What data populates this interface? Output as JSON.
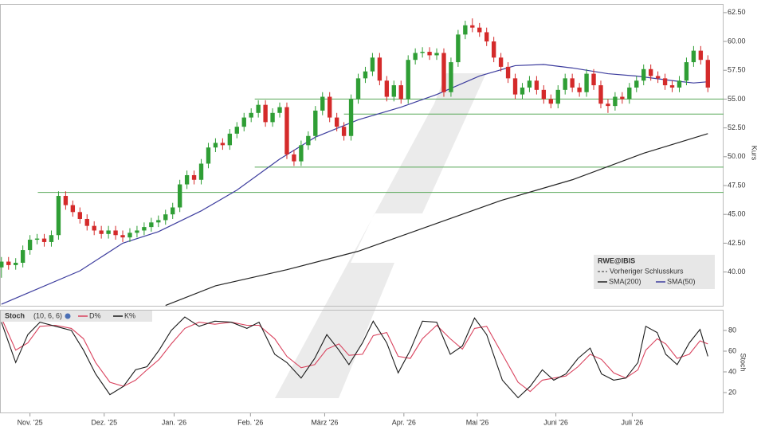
{
  "chart_data": [
    {
      "type": "candlestick",
      "ylabel": "Kurs",
      "xlim": [
        -0.2,
        101.2
      ],
      "ylim": [
        37.0,
        63.25
      ],
      "yticks": [
        {
          "value": 40,
          "label": "40.00"
        },
        {
          "value": 42.5,
          "label": "42.50"
        },
        {
          "value": 45,
          "label": "45.00"
        },
        {
          "value": 47.5,
          "label": "47.50"
        },
        {
          "value": 50,
          "label": "50.00"
        },
        {
          "value": 52.5,
          "label": "52.50"
        },
        {
          "value": 55,
          "label": "55.00"
        },
        {
          "value": 57.5,
          "label": "57.50"
        },
        {
          "value": 60,
          "label": "60.00"
        },
        {
          "value": 62.5,
          "label": "62.50"
        }
      ],
      "legend_title": "RWE@IBIS",
      "legend_note": "Vorheriger Schlusskurs",
      "legend": "lower right",
      "up_color": "#2f9e35",
      "down_color": "#d42a2a",
      "level_color": "#58a858",
      "x": [
        0,
        1,
        2,
        3,
        4,
        5,
        6,
        7,
        8,
        9,
        10,
        11,
        12,
        13,
        14,
        15,
        16,
        17,
        18,
        19,
        20,
        21,
        22,
        23,
        24,
        25,
        26,
        27,
        28,
        29,
        30,
        31,
        32,
        33,
        34,
        35,
        36,
        37,
        38,
        39,
        40,
        41,
        42,
        43,
        44,
        45,
        46,
        47,
        48,
        49,
        50,
        51,
        52,
        53,
        54,
        55,
        56,
        57,
        58,
        59,
        60,
        61,
        62,
        63,
        64,
        65,
        66,
        67,
        68,
        69,
        70,
        71,
        72,
        73,
        74,
        75,
        76,
        77,
        78,
        79,
        80,
        81,
        82,
        83,
        84,
        85,
        86,
        87,
        88,
        89,
        90,
        91,
        92,
        93,
        94,
        95,
        96,
        97,
        98,
        99
      ],
      "open": [
        40.4,
        40.9,
        40.6,
        40.8,
        41.9,
        42.8,
        42.9,
        42.6,
        43.2,
        46.6,
        45.8,
        45.2,
        44.6,
        44.0,
        43.6,
        43.3,
        43.6,
        43.2,
        43.0,
        43.4,
        43.6,
        43.9,
        44.3,
        44.5,
        45.0,
        45.6,
        47.6,
        48.4,
        48.0,
        49.4,
        50.8,
        51.2,
        51.0,
        52.0,
        52.6,
        53.4,
        53.8,
        54.5,
        53.0,
        53.8,
        54.3,
        50.2,
        49.6,
        51.0,
        51.8,
        54.0,
        55.2,
        53.4,
        52.6,
        51.8,
        55.0,
        56.8,
        57.4,
        58.6,
        56.6,
        55.2,
        56.2,
        55.0,
        58.4,
        59.0,
        59.1,
        58.8,
        59.0,
        55.6,
        58.2,
        60.6,
        61.4,
        61.2,
        60.8,
        60.0,
        58.6,
        57.8,
        56.8,
        55.4,
        56.0,
        56.6,
        55.8,
        55.0,
        54.6,
        55.8,
        56.8,
        56.0,
        55.6,
        57.2,
        56.2,
        54.6,
        54.4,
        55.2,
        55.0,
        56.0,
        56.6,
        57.6,
        57.0,
        56.8,
        56.2,
        56.0,
        56.6,
        58.2,
        59.2,
        58.4
      ],
      "high": [
        41.3,
        41.3,
        41.2,
        42.3,
        43.2,
        43.3,
        43.3,
        43.6,
        47.0,
        47.0,
        46.2,
        45.6,
        45.0,
        44.4,
        44.0,
        44.0,
        44.0,
        43.6,
        43.8,
        44.0,
        44.3,
        44.7,
        44.9,
        45.4,
        46.0,
        48.0,
        48.8,
        48.8,
        49.8,
        51.2,
        51.6,
        51.6,
        52.4,
        53.0,
        53.8,
        54.2,
        54.9,
        54.9,
        54.2,
        54.7,
        54.7,
        50.6,
        51.4,
        52.2,
        54.4,
        55.6,
        55.6,
        53.8,
        53.0,
        55.4,
        57.2,
        57.8,
        59.0,
        59.0,
        57.0,
        56.6,
        56.6,
        58.8,
        59.4,
        59.5,
        59.5,
        59.4,
        59.4,
        58.6,
        61.0,
        61.8,
        62.0,
        61.6,
        61.2,
        60.4,
        59.0,
        58.2,
        57.2,
        56.4,
        57.0,
        57.0,
        56.2,
        55.4,
        56.2,
        57.2,
        57.2,
        56.4,
        57.6,
        57.6,
        56.6,
        55.0,
        55.6,
        55.6,
        56.4,
        57.0,
        58.0,
        58.0,
        57.4,
        57.2,
        56.6,
        57.0,
        58.6,
        59.6,
        59.6,
        58.8
      ],
      "low": [
        39.5,
        40.2,
        40.2,
        40.4,
        41.5,
        42.4,
        42.2,
        42.2,
        42.8,
        45.4,
        44.8,
        44.2,
        43.6,
        43.2,
        42.9,
        42.9,
        42.8,
        42.6,
        42.6,
        43.0,
        43.2,
        43.5,
        43.9,
        44.1,
        44.6,
        45.2,
        47.2,
        47.6,
        47.6,
        49.0,
        50.4,
        50.6,
        50.6,
        51.6,
        52.2,
        53.0,
        53.4,
        52.6,
        52.6,
        53.4,
        49.8,
        49.2,
        49.2,
        50.6,
        51.4,
        53.6,
        53.0,
        52.2,
        51.4,
        51.4,
        54.6,
        56.4,
        57.0,
        56.2,
        54.8,
        54.8,
        54.6,
        54.6,
        58.0,
        58.6,
        58.4,
        58.4,
        55.2,
        55.2,
        57.8,
        60.2,
        60.8,
        60.4,
        59.6,
        58.2,
        57.4,
        56.4,
        55.0,
        55.0,
        55.6,
        55.4,
        54.6,
        54.2,
        54.2,
        55.4,
        55.6,
        55.2,
        55.2,
        55.8,
        54.2,
        53.8,
        54.0,
        54.6,
        54.6,
        55.6,
        56.2,
        56.6,
        56.4,
        55.8,
        55.6,
        55.6,
        56.2,
        57.8,
        58.0,
        55.6
      ],
      "close": [
        40.9,
        40.6,
        40.8,
        41.9,
        42.8,
        42.9,
        42.6,
        43.2,
        46.6,
        45.8,
        45.2,
        44.6,
        44.0,
        43.6,
        43.3,
        43.6,
        43.2,
        43.0,
        43.4,
        43.6,
        43.9,
        44.3,
        44.5,
        45.0,
        45.6,
        47.6,
        48.4,
        48.0,
        49.4,
        50.8,
        51.2,
        51.0,
        52.0,
        52.6,
        53.4,
        53.8,
        54.5,
        53.0,
        53.8,
        54.3,
        50.2,
        49.6,
        51.0,
        51.8,
        54.0,
        55.2,
        53.4,
        52.6,
        51.8,
        55.0,
        56.8,
        57.4,
        58.6,
        56.6,
        55.2,
        56.2,
        55.0,
        58.4,
        59.0,
        59.1,
        58.8,
        59.0,
        55.6,
        58.2,
        60.6,
        61.4,
        61.2,
        60.8,
        60.0,
        58.6,
        57.8,
        56.8,
        55.4,
        56.0,
        56.6,
        55.8,
        55.0,
        54.6,
        55.8,
        56.8,
        56.0,
        55.6,
        57.2,
        56.2,
        54.6,
        54.4,
        55.2,
        55.0,
        56.0,
        56.6,
        57.6,
        57.0,
        56.8,
        56.2,
        56.0,
        56.6,
        58.2,
        59.2,
        58.4,
        56.0
      ],
      "levels": [
        {
          "value": 55.0,
          "x": 35.5
        },
        {
          "value": 53.7,
          "x": 48
        },
        {
          "value": 49.1,
          "x": 35.5
        },
        {
          "value": 46.9,
          "x": 5.1
        }
      ],
      "series": [
        {
          "name": "SMA(200)",
          "color": "#222222",
          "x": [
            23,
            30,
            40,
            50,
            60,
            70,
            80,
            90,
            99
          ],
          "values": [
            37.1,
            38.8,
            40.2,
            41.8,
            44.0,
            46.2,
            48.0,
            50.3,
            52.0
          ]
        },
        {
          "name": "SMA(50)",
          "color": "#3d3d9e",
          "x": [
            0,
            11,
            17,
            22,
            28,
            33,
            39,
            44,
            50,
            56,
            61,
            67,
            72,
            76,
            80,
            85,
            89,
            94,
            97,
            99
          ],
          "values": [
            37.2,
            40.1,
            42.5,
            43.5,
            45.3,
            47.1,
            49.8,
            51.7,
            53.2,
            54.3,
            55.4,
            57.0,
            57.9,
            58.0,
            57.7,
            57.2,
            57.0,
            56.6,
            56.4,
            56.5
          ]
        }
      ]
    },
    {
      "type": "line",
      "title": "Stoch",
      "subtitle": "(10, 6, 6)",
      "ylabel": "Stoch",
      "xlim": [
        -0.2,
        101.2
      ],
      "ylim": [
        0,
        100
      ],
      "yticks": [
        20,
        40,
        60,
        80
      ],
      "xticks": [
        {
          "value": 4.0,
          "label": "Nov. '25"
        },
        {
          "value": 14.4,
          "label": "Dez. '25"
        },
        {
          "value": 24.2,
          "label": "Jan. '26"
        },
        {
          "value": 34.9,
          "label": "Feb. '26"
        },
        {
          "value": 45.3,
          "label": "März '26"
        },
        {
          "value": 56.4,
          "label": "Apr. '26"
        },
        {
          "value": 66.7,
          "label": "Mai '26"
        },
        {
          "value": 77.7,
          "label": "Juni '26"
        },
        {
          "value": 88.4,
          "label": "Juli '26"
        }
      ],
      "series": [
        {
          "name": "D%",
          "color": "#d9435e",
          "x": [
            0,
            2.0,
            3.7,
            5.4,
            7.6,
            9.8,
            11.5,
            13.2,
            15.2,
            17.1,
            18.8,
            20.4,
            22.1,
            23.8,
            25.7,
            27.7,
            29.9,
            32.2,
            34.4,
            36.1,
            38.3,
            40.0,
            42.0,
            43.9,
            45.6,
            47.3,
            48.7,
            50.6,
            52.1,
            54.0,
            55.6,
            57.3,
            59.0,
            61.0,
            62.9,
            64.6,
            66.3,
            68.0,
            70.2,
            72.4,
            74.1,
            75.8,
            77.4,
            79.1,
            80.8,
            82.5,
            84.1,
            85.8,
            87.5,
            89.2,
            90.3,
            91.9,
            93.1,
            94.7,
            96.4,
            97.9,
            99.0
          ],
          "values": [
            92,
            61,
            68,
            84,
            85,
            82,
            72,
            49,
            30,
            26,
            32,
            42,
            52,
            67,
            82,
            88,
            86,
            88,
            85,
            85,
            72,
            55,
            44,
            47,
            62,
            67,
            56,
            57,
            75,
            78,
            55,
            53,
            72,
            85,
            72,
            62,
            82,
            84,
            57,
            30,
            21,
            32,
            34,
            36,
            45,
            57,
            52,
            39,
            34,
            42,
            61,
            72,
            67,
            53,
            57,
            70,
            67
          ]
        },
        {
          "name": "K%",
          "color": "#1a1a1a",
          "x": [
            0,
            2.0,
            3.7,
            5.4,
            7.6,
            9.8,
            11.5,
            13.2,
            15.2,
            17.1,
            18.8,
            20.4,
            22.1,
            23.8,
            25.7,
            27.7,
            29.9,
            32.2,
            34.4,
            36.1,
            38.3,
            40.0,
            42.0,
            43.9,
            45.6,
            47.3,
            48.7,
            50.6,
            52.1,
            54.0,
            55.6,
            57.3,
            59.0,
            61.0,
            62.9,
            64.6,
            66.3,
            68.0,
            70.2,
            72.4,
            74.1,
            75.8,
            77.4,
            79.1,
            80.8,
            82.5,
            84.1,
            85.8,
            87.5,
            89.2,
            90.3,
            91.9,
            93.1,
            94.7,
            96.4,
            97.9,
            99.0
          ],
          "values": [
            88,
            49,
            76,
            88,
            84,
            80,
            61,
            38,
            18,
            26,
            42,
            45,
            61,
            80,
            93,
            84,
            89,
            88,
            82,
            88,
            57,
            49,
            34,
            53,
            76,
            61,
            47,
            68,
            89,
            68,
            39,
            61,
            89,
            88,
            57,
            65,
            92,
            76,
            32,
            15,
            26,
            42,
            32,
            38,
            53,
            63,
            38,
            32,
            34,
            49,
            84,
            78,
            57,
            47,
            68,
            81,
            55
          ]
        }
      ]
    }
  ]
}
